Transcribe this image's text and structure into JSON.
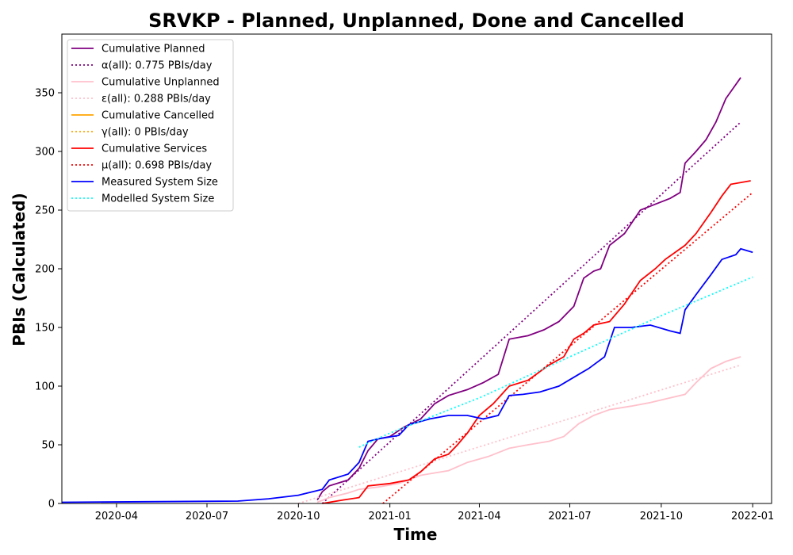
{
  "chart_data": {
    "type": "line",
    "title": "SRVKP - Planned, Unplanned, Done  and Cancelled",
    "xlabel": "Time",
    "ylabel": "PBIs (Calculated)",
    "xlim": [
      "2020-02-06",
      "2022-01-20"
    ],
    "ylim": [
      0,
      400
    ],
    "x_ticks": [
      {
        "date": "2020-04-01",
        "label": "2020-04"
      },
      {
        "date": "2020-07-01",
        "label": "2020-07"
      },
      {
        "date": "2020-10-01",
        "label": "2020-10"
      },
      {
        "date": "2021-01-01",
        "label": "2021-01"
      },
      {
        "date": "2021-04-01",
        "label": "2021-04"
      },
      {
        "date": "2021-07-01",
        "label": "2021-07"
      },
      {
        "date": "2021-10-01",
        "label": "2021-10"
      },
      {
        "date": "2022-01-01",
        "label": "2022-01"
      }
    ],
    "y_ticks": [
      0,
      50,
      100,
      150,
      200,
      250,
      300,
      350
    ],
    "grid": false,
    "legend_position": "top-left",
    "series": [
      {
        "name": "Cumulative Planned",
        "color": "#800080",
        "style": "solid",
        "points": [
          [
            "2020-10-20",
            3
          ],
          [
            "2020-10-25",
            10
          ],
          [
            "2020-11-01",
            15
          ],
          [
            "2020-11-20",
            20
          ],
          [
            "2020-12-01",
            30
          ],
          [
            "2020-12-10",
            45
          ],
          [
            "2020-12-20",
            55
          ],
          [
            "2021-01-01",
            57
          ],
          [
            "2021-01-15",
            65
          ],
          [
            "2021-02-01",
            72
          ],
          [
            "2021-02-15",
            85
          ],
          [
            "2021-03-01",
            92
          ],
          [
            "2021-03-20",
            97
          ],
          [
            "2021-04-05",
            103
          ],
          [
            "2021-04-20",
            110
          ],
          [
            "2021-05-01",
            140
          ],
          [
            "2021-05-20",
            143
          ],
          [
            "2021-06-05",
            148
          ],
          [
            "2021-06-20",
            155
          ],
          [
            "2021-07-05",
            168
          ],
          [
            "2021-07-15",
            192
          ],
          [
            "2021-07-25",
            198
          ],
          [
            "2021-08-01",
            200
          ],
          [
            "2021-08-10",
            220
          ],
          [
            "2021-08-25",
            230
          ],
          [
            "2021-09-10",
            250
          ],
          [
            "2021-09-25",
            255
          ],
          [
            "2021-10-10",
            260
          ],
          [
            "2021-10-20",
            265
          ],
          [
            "2021-10-25",
            290
          ],
          [
            "2021-11-05",
            300
          ],
          [
            "2021-11-15",
            310
          ],
          [
            "2021-11-25",
            325
          ],
          [
            "2021-12-05",
            345
          ],
          [
            "2021-12-20",
            363
          ]
        ]
      },
      {
        "name": "α(all): 0.775 PBIs/day",
        "color": "#800080",
        "style": "dotted",
        "points": [
          [
            "2020-10-25",
            0
          ],
          [
            "2021-12-20",
            325
          ]
        ]
      },
      {
        "name": "Cumulative Unplanned",
        "color": "#ffc0cb",
        "style": "solid",
        "points": [
          [
            "2020-10-20",
            1
          ],
          [
            "2020-11-01",
            5
          ],
          [
            "2020-11-20",
            9
          ],
          [
            "2020-12-01",
            12
          ],
          [
            "2020-12-20",
            14
          ],
          [
            "2021-01-10",
            17
          ],
          [
            "2021-02-01",
            24
          ],
          [
            "2021-02-15",
            26
          ],
          [
            "2021-03-01",
            28
          ],
          [
            "2021-03-20",
            35
          ],
          [
            "2021-04-10",
            40
          ],
          [
            "2021-05-01",
            47
          ],
          [
            "2021-05-20",
            50
          ],
          [
            "2021-06-10",
            53
          ],
          [
            "2021-06-25",
            57
          ],
          [
            "2021-07-10",
            68
          ],
          [
            "2021-07-25",
            75
          ],
          [
            "2021-08-10",
            80
          ],
          [
            "2021-09-01",
            83
          ],
          [
            "2021-09-20",
            86
          ],
          [
            "2021-10-05",
            89
          ],
          [
            "2021-10-25",
            93
          ],
          [
            "2021-11-05",
            103
          ],
          [
            "2021-11-20",
            115
          ],
          [
            "2021-12-05",
            121
          ],
          [
            "2021-12-20",
            125
          ]
        ]
      },
      {
        "name": "ε(all): 0.288 PBIs/day",
        "color": "#ffc0cb",
        "style": "dotted",
        "points": [
          [
            "2020-10-01",
            0
          ],
          [
            "2021-12-20",
            118
          ]
        ]
      },
      {
        "name": "Cumulative Cancelled",
        "color": "#ffa500",
        "style": "solid",
        "points": []
      },
      {
        "name": "γ(all): 0 PBIs/day",
        "color": "#ffa500",
        "style": "dotted",
        "points": []
      },
      {
        "name": "Cumulative Services",
        "color": "#ff0000",
        "style": "solid",
        "points": [
          [
            "2020-10-25",
            0
          ],
          [
            "2020-11-15",
            3
          ],
          [
            "2020-12-01",
            5
          ],
          [
            "2020-12-10",
            15
          ],
          [
            "2021-01-01",
            17
          ],
          [
            "2021-01-20",
            20
          ],
          [
            "2021-02-01",
            27
          ],
          [
            "2021-02-15",
            38
          ],
          [
            "2021-03-01",
            42
          ],
          [
            "2021-03-10",
            50
          ],
          [
            "2021-03-20",
            60
          ],
          [
            "2021-04-01",
            75
          ],
          [
            "2021-04-15",
            85
          ],
          [
            "2021-05-01",
            100
          ],
          [
            "2021-05-20",
            105
          ],
          [
            "2021-06-10",
            118
          ],
          [
            "2021-06-25",
            125
          ],
          [
            "2021-07-05",
            140
          ],
          [
            "2021-07-15",
            145
          ],
          [
            "2021-07-25",
            152
          ],
          [
            "2021-08-10",
            155
          ],
          [
            "2021-08-25",
            170
          ],
          [
            "2021-09-10",
            190
          ],
          [
            "2021-09-25",
            200
          ],
          [
            "2021-10-05",
            208
          ],
          [
            "2021-10-25",
            220
          ],
          [
            "2021-11-05",
            230
          ],
          [
            "2021-11-20",
            248
          ],
          [
            "2021-12-01",
            262
          ],
          [
            "2021-12-10",
            272
          ],
          [
            "2021-12-30",
            275
          ]
        ]
      },
      {
        "name": "μ(all): 0.698 PBIs/day",
        "color": "#ff0000",
        "style": "dotted",
        "points": [
          [
            "2020-12-25",
            0
          ],
          [
            "2022-01-01",
            265
          ]
        ]
      },
      {
        "name": "Measured System Size",
        "color": "#0000ff",
        "style": "solid",
        "points": [
          [
            "2020-02-06",
            1
          ],
          [
            "2020-08-01",
            2
          ],
          [
            "2020-09-01",
            4
          ],
          [
            "2020-10-01",
            7
          ],
          [
            "2020-10-25",
            12
          ],
          [
            "2020-11-01",
            20
          ],
          [
            "2020-11-20",
            25
          ],
          [
            "2020-12-01",
            35
          ],
          [
            "2020-12-10",
            53
          ],
          [
            "2020-12-20",
            55
          ],
          [
            "2021-01-10",
            58
          ],
          [
            "2021-01-20",
            67
          ],
          [
            "2021-02-10",
            72
          ],
          [
            "2021-03-01",
            75
          ],
          [
            "2021-03-20",
            75
          ],
          [
            "2021-04-05",
            72
          ],
          [
            "2021-04-20",
            75
          ],
          [
            "2021-05-01",
            92
          ],
          [
            "2021-05-15",
            93
          ],
          [
            "2021-06-01",
            95
          ],
          [
            "2021-06-20",
            100
          ],
          [
            "2021-07-10",
            110
          ],
          [
            "2021-07-20",
            115
          ],
          [
            "2021-08-05",
            125
          ],
          [
            "2021-08-15",
            150
          ],
          [
            "2021-09-01",
            150
          ],
          [
            "2021-09-20",
            152
          ],
          [
            "2021-10-10",
            147
          ],
          [
            "2021-10-20",
            145
          ],
          [
            "2021-10-25",
            165
          ],
          [
            "2021-11-05",
            178
          ],
          [
            "2021-11-20",
            195
          ],
          [
            "2021-12-01",
            208
          ],
          [
            "2021-12-15",
            212
          ],
          [
            "2021-12-20",
            217
          ],
          [
            "2022-01-01",
            214
          ]
        ]
      },
      {
        "name": "Modelled System Size",
        "color": "#00ffff",
        "style": "dotted",
        "points": [
          [
            "2020-12-01",
            48
          ],
          [
            "2021-01-01",
            60
          ],
          [
            "2021-04-01",
            90
          ],
          [
            "2021-07-01",
            125
          ],
          [
            "2021-10-01",
            160
          ],
          [
            "2022-01-01",
            193
          ]
        ]
      }
    ]
  }
}
